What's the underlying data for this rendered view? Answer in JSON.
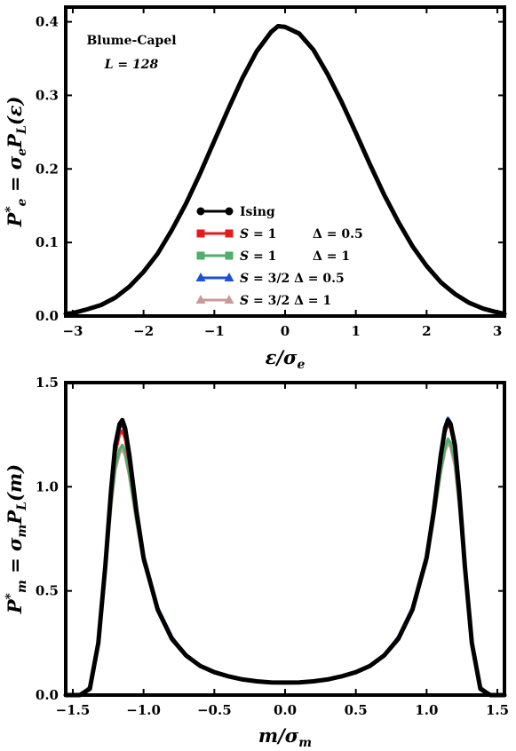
{
  "chart_data": [
    {
      "type": "line",
      "xlabel": "ε/σ_e",
      "ylabel": "P*_e = σ_e P_L(ε)",
      "xlim": [
        -3.1,
        3.1
      ],
      "ylim": [
        0.0,
        0.42
      ],
      "x_ticks": [
        -3,
        -2,
        -1,
        0,
        1,
        2,
        3
      ],
      "y_ticks": [
        0.0,
        0.1,
        0.2,
        0.3,
        0.4
      ],
      "x_tick_labels": [
        "−3",
        "−2",
        "−1",
        "0",
        "1",
        "2",
        "3"
      ],
      "y_tick_labels": [
        "0.0",
        "0.1",
        "0.2",
        "0.3",
        "0.4"
      ],
      "annotation": [
        "Blume-Capel",
        "L = 128"
      ],
      "legend_position": "lower-center",
      "grid": false,
      "series": [
        {
          "name": "Ising",
          "color": "#000000",
          "marker": "circle",
          "x": [
            -3.1,
            -3.0,
            -2.8,
            -2.6,
            -2.4,
            -2.2,
            -2.0,
            -1.8,
            -1.6,
            -1.4,
            -1.2,
            -1.0,
            -0.8,
            -0.6,
            -0.4,
            -0.2,
            -0.1,
            0.0,
            0.2,
            0.4,
            0.6,
            0.8,
            1.0,
            1.2,
            1.4,
            1.6,
            1.8,
            2.0,
            2.2,
            2.4,
            2.6,
            2.8,
            3.0,
            3.1
          ],
          "y": [
            0.003,
            0.004,
            0.009,
            0.015,
            0.025,
            0.04,
            0.06,
            0.085,
            0.117,
            0.153,
            0.194,
            0.238,
            0.282,
            0.324,
            0.36,
            0.386,
            0.394,
            0.393,
            0.384,
            0.362,
            0.329,
            0.291,
            0.249,
            0.206,
            0.165,
            0.128,
            0.095,
            0.068,
            0.046,
            0.03,
            0.018,
            0.01,
            0.005,
            0.003
          ]
        },
        {
          "name": "S = 1   Δ = 0.5",
          "color": "#e41a1c",
          "marker": "square",
          "x": [
            -3.1,
            -3.0,
            -2.8,
            -2.6,
            -2.4,
            -2.2,
            -2.0,
            -1.8,
            -1.6,
            -1.4,
            -1.2,
            -1.0,
            -0.8,
            -0.6,
            -0.4,
            -0.2,
            -0.1,
            0.0,
            0.2,
            0.4,
            0.6,
            0.8,
            1.0,
            1.2,
            1.4,
            1.6,
            1.8,
            2.0,
            2.2,
            2.4,
            2.6,
            2.8,
            3.0,
            3.1
          ],
          "y": [
            0.003,
            0.004,
            0.009,
            0.016,
            0.026,
            0.041,
            0.061,
            0.086,
            0.118,
            0.154,
            0.195,
            0.239,
            0.283,
            0.325,
            0.361,
            0.387,
            0.395,
            0.394,
            0.385,
            0.363,
            0.33,
            0.292,
            0.25,
            0.207,
            0.166,
            0.129,
            0.096,
            0.069,
            0.047,
            0.031,
            0.019,
            0.011,
            0.006,
            0.004
          ]
        },
        {
          "name": "S = 1   Δ = 1",
          "color": "#4daf6a",
          "marker": "square",
          "x": [
            -3.1,
            -3.0,
            -2.8,
            -2.6,
            -2.4,
            -2.2,
            -2.0,
            -1.8,
            -1.6,
            -1.4,
            -1.2,
            -1.0,
            -0.8,
            -0.6,
            -0.4,
            -0.2,
            -0.1,
            0.0,
            0.2,
            0.4,
            0.6,
            0.8,
            1.0,
            1.2,
            1.4,
            1.6,
            1.8,
            2.0,
            2.2,
            2.4,
            2.6,
            2.8,
            3.0,
            3.1
          ],
          "y": [
            0.003,
            0.004,
            0.009,
            0.015,
            0.025,
            0.04,
            0.06,
            0.085,
            0.117,
            0.153,
            0.194,
            0.238,
            0.282,
            0.324,
            0.36,
            0.386,
            0.394,
            0.393,
            0.384,
            0.362,
            0.329,
            0.291,
            0.249,
            0.206,
            0.165,
            0.128,
            0.095,
            0.068,
            0.046,
            0.03,
            0.018,
            0.01,
            0.005,
            0.003
          ]
        },
        {
          "name": "S = 3/2 Δ = 0.5",
          "color": "#1f4fd6",
          "marker": "triangle",
          "x": [
            -3.1,
            -3.0,
            -2.8,
            -2.6,
            -2.4,
            -2.2,
            -2.0,
            -1.8,
            -1.6,
            -1.4,
            -1.2,
            -1.0,
            -0.8,
            -0.6,
            -0.4,
            -0.2,
            -0.1,
            0.0,
            0.2,
            0.4,
            0.6,
            0.8,
            1.0,
            1.2,
            1.4,
            1.6,
            1.8,
            2.0,
            2.2,
            2.4,
            2.6,
            2.8,
            3.0,
            3.1
          ],
          "y": [
            0.003,
            0.004,
            0.009,
            0.015,
            0.025,
            0.04,
            0.06,
            0.085,
            0.117,
            0.153,
            0.194,
            0.238,
            0.282,
            0.324,
            0.36,
            0.386,
            0.395,
            0.394,
            0.384,
            0.362,
            0.329,
            0.291,
            0.249,
            0.206,
            0.165,
            0.128,
            0.095,
            0.068,
            0.046,
            0.03,
            0.018,
            0.01,
            0.005,
            0.003
          ]
        },
        {
          "name": "S = 3/2 Δ = 1",
          "color": "#c99a9a",
          "marker": "triangle",
          "x": [
            -3.1,
            -3.0,
            -2.8,
            -2.6,
            -2.4,
            -2.2,
            -2.0,
            -1.8,
            -1.6,
            -1.4,
            -1.2,
            -1.0,
            -0.8,
            -0.6,
            -0.4,
            -0.2,
            -0.1,
            0.0,
            0.2,
            0.4,
            0.6,
            0.8,
            1.0,
            1.2,
            1.4,
            1.6,
            1.8,
            2.0,
            2.2,
            2.4,
            2.6,
            2.8,
            3.0,
            3.1
          ],
          "y": [
            0.003,
            0.004,
            0.009,
            0.015,
            0.025,
            0.04,
            0.06,
            0.085,
            0.117,
            0.153,
            0.194,
            0.238,
            0.282,
            0.324,
            0.36,
            0.386,
            0.394,
            0.393,
            0.384,
            0.362,
            0.329,
            0.291,
            0.249,
            0.206,
            0.165,
            0.128,
            0.095,
            0.068,
            0.046,
            0.03,
            0.018,
            0.01,
            0.005,
            0.003
          ]
        }
      ]
    },
    {
      "type": "line",
      "xlabel": "m/σ_m",
      "ylabel": "P*_m = σ_m P_L(m)",
      "xlim": [
        -1.55,
        1.55
      ],
      "ylim": [
        0.0,
        1.5
      ],
      "x_ticks": [
        -1.5,
        -1.0,
        -0.5,
        0.0,
        0.5,
        1.0,
        1.5
      ],
      "y_ticks": [
        0.0,
        0.5,
        1.0,
        1.5
      ],
      "x_tick_labels": [
        "−1.5",
        "−1.0",
        "−0.5",
        "0.0",
        "0.5",
        "1.0",
        "1.5"
      ],
      "y_tick_labels": [
        "0.0",
        "0.5",
        "1.0",
        "1.5"
      ],
      "grid": false,
      "series": [
        {
          "name": "Ising",
          "color": "#000000",
          "x": [
            -1.55,
            -1.45,
            -1.38,
            -1.32,
            -1.27,
            -1.23,
            -1.2,
            -1.17,
            -1.15,
            -1.13,
            -1.1,
            -1.05,
            -1.0,
            -0.9,
            -0.8,
            -0.7,
            -0.6,
            -0.5,
            -0.4,
            -0.3,
            -0.2,
            -0.1,
            0.0,
            0.1,
            0.2,
            0.3,
            0.4,
            0.5,
            0.6,
            0.7,
            0.8,
            0.9,
            1.0,
            1.05,
            1.1,
            1.13,
            1.15,
            1.17,
            1.2,
            1.23,
            1.27,
            1.32,
            1.38,
            1.45,
            1.55
          ],
          "y": [
            0.0,
            0.0,
            0.03,
            0.25,
            0.62,
            0.98,
            1.2,
            1.3,
            1.32,
            1.28,
            1.15,
            0.88,
            0.66,
            0.41,
            0.27,
            0.19,
            0.14,
            0.11,
            0.09,
            0.075,
            0.066,
            0.061,
            0.06,
            0.061,
            0.066,
            0.075,
            0.09,
            0.11,
            0.14,
            0.19,
            0.27,
            0.41,
            0.66,
            0.88,
            1.15,
            1.28,
            1.32,
            1.3,
            1.2,
            0.98,
            0.62,
            0.25,
            0.03,
            0.0,
            0.0
          ]
        },
        {
          "name": "S = 1   Δ = 0.5",
          "color": "#e41a1c",
          "x": [
            -1.55,
            -1.45,
            -1.38,
            -1.32,
            -1.27,
            -1.23,
            -1.2,
            -1.17,
            -1.15,
            -1.13,
            -1.1,
            -1.05,
            -1.0,
            -0.9,
            -0.8,
            -0.7,
            -0.6,
            -0.5,
            -0.4,
            -0.3,
            -0.2,
            -0.1,
            0.0,
            0.1,
            0.2,
            0.3,
            0.4,
            0.5,
            0.6,
            0.7,
            0.8,
            0.9,
            1.0,
            1.05,
            1.1,
            1.13,
            1.15,
            1.17,
            1.2,
            1.23,
            1.27,
            1.32,
            1.38,
            1.45,
            1.55
          ],
          "y": [
            0.0,
            0.0,
            0.03,
            0.24,
            0.6,
            0.95,
            1.16,
            1.25,
            1.27,
            1.23,
            1.11,
            0.86,
            0.65,
            0.41,
            0.27,
            0.19,
            0.14,
            0.11,
            0.09,
            0.075,
            0.066,
            0.061,
            0.06,
            0.061,
            0.066,
            0.075,
            0.09,
            0.11,
            0.14,
            0.19,
            0.27,
            0.41,
            0.65,
            0.87,
            1.13,
            1.26,
            1.3,
            1.28,
            1.18,
            0.96,
            0.61,
            0.24,
            0.03,
            0.0,
            0.0
          ]
        },
        {
          "name": "S = 1   Δ = 1",
          "color": "#4daf6a",
          "x": [
            -1.55,
            -1.45,
            -1.38,
            -1.32,
            -1.27,
            -1.23,
            -1.2,
            -1.17,
            -1.15,
            -1.13,
            -1.1,
            -1.05,
            -1.0,
            -0.9,
            -0.8,
            -0.7,
            -0.6,
            -0.5,
            -0.4,
            -0.3,
            -0.2,
            -0.1,
            0.0,
            0.1,
            0.2,
            0.3,
            0.4,
            0.5,
            0.6,
            0.7,
            0.8,
            0.9,
            1.0,
            1.05,
            1.1,
            1.13,
            1.15,
            1.17,
            1.2,
            1.23,
            1.27,
            1.32,
            1.38,
            1.45,
            1.55
          ],
          "y": [
            0.0,
            0.0,
            0.04,
            0.26,
            0.6,
            0.92,
            1.1,
            1.18,
            1.2,
            1.17,
            1.06,
            0.84,
            0.64,
            0.41,
            0.27,
            0.19,
            0.14,
            0.11,
            0.09,
            0.075,
            0.066,
            0.061,
            0.06,
            0.061,
            0.066,
            0.075,
            0.09,
            0.11,
            0.14,
            0.19,
            0.27,
            0.41,
            0.64,
            0.85,
            1.08,
            1.19,
            1.23,
            1.21,
            1.12,
            0.93,
            0.61,
            0.26,
            0.04,
            0.0,
            0.0
          ]
        },
        {
          "name": "S = 3/2 Δ = 0.5",
          "color": "#1f4fd6",
          "x": [
            -1.55,
            -1.45,
            -1.38,
            -1.32,
            -1.27,
            -1.23,
            -1.2,
            -1.17,
            -1.15,
            -1.13,
            -1.1,
            -1.05,
            -1.0,
            -0.9,
            -0.8,
            -0.7,
            -0.6,
            -0.5,
            -0.4,
            -0.3,
            -0.2,
            -0.1,
            0.0,
            0.1,
            0.2,
            0.3,
            0.4,
            0.5,
            0.6,
            0.7,
            0.8,
            0.9,
            1.0,
            1.05,
            1.1,
            1.13,
            1.15,
            1.17,
            1.2,
            1.23,
            1.27,
            1.32,
            1.38,
            1.45,
            1.55
          ],
          "y": [
            0.0,
            0.0,
            0.03,
            0.25,
            0.62,
            0.97,
            1.18,
            1.28,
            1.3,
            1.26,
            1.13,
            0.87,
            0.66,
            0.42,
            0.28,
            0.19,
            0.14,
            0.11,
            0.09,
            0.075,
            0.066,
            0.061,
            0.06,
            0.061,
            0.066,
            0.075,
            0.09,
            0.11,
            0.14,
            0.19,
            0.28,
            0.42,
            0.66,
            0.88,
            1.15,
            1.29,
            1.33,
            1.31,
            1.21,
            0.98,
            0.62,
            0.25,
            0.03,
            0.0,
            0.0
          ]
        },
        {
          "name": "S = 3/2 Δ = 1",
          "color": "#c99a9a",
          "x": [
            -1.55,
            -1.45,
            -1.38,
            -1.32,
            -1.27,
            -1.23,
            -1.2,
            -1.17,
            -1.15,
            -1.13,
            -1.1,
            -1.05,
            -1.0,
            -0.9,
            -0.8,
            -0.7,
            -0.6,
            -0.5,
            -0.4,
            -0.3,
            -0.2,
            -0.1,
            0.0,
            0.1,
            0.2,
            0.3,
            0.4,
            0.5,
            0.6,
            0.7,
            0.8,
            0.9,
            1.0,
            1.05,
            1.1,
            1.13,
            1.15,
            1.17,
            1.2,
            1.23,
            1.27,
            1.32,
            1.38,
            1.45,
            1.55
          ],
          "y": [
            0.0,
            0.0,
            0.04,
            0.25,
            0.59,
            0.9,
            1.08,
            1.16,
            1.18,
            1.15,
            1.05,
            0.83,
            0.64,
            0.41,
            0.27,
            0.19,
            0.14,
            0.11,
            0.09,
            0.075,
            0.066,
            0.061,
            0.06,
            0.061,
            0.066,
            0.075,
            0.09,
            0.11,
            0.14,
            0.19,
            0.27,
            0.41,
            0.64,
            0.84,
            1.07,
            1.17,
            1.21,
            1.19,
            1.1,
            0.91,
            0.6,
            0.25,
            0.04,
            0.0,
            0.0
          ]
        }
      ]
    }
  ]
}
